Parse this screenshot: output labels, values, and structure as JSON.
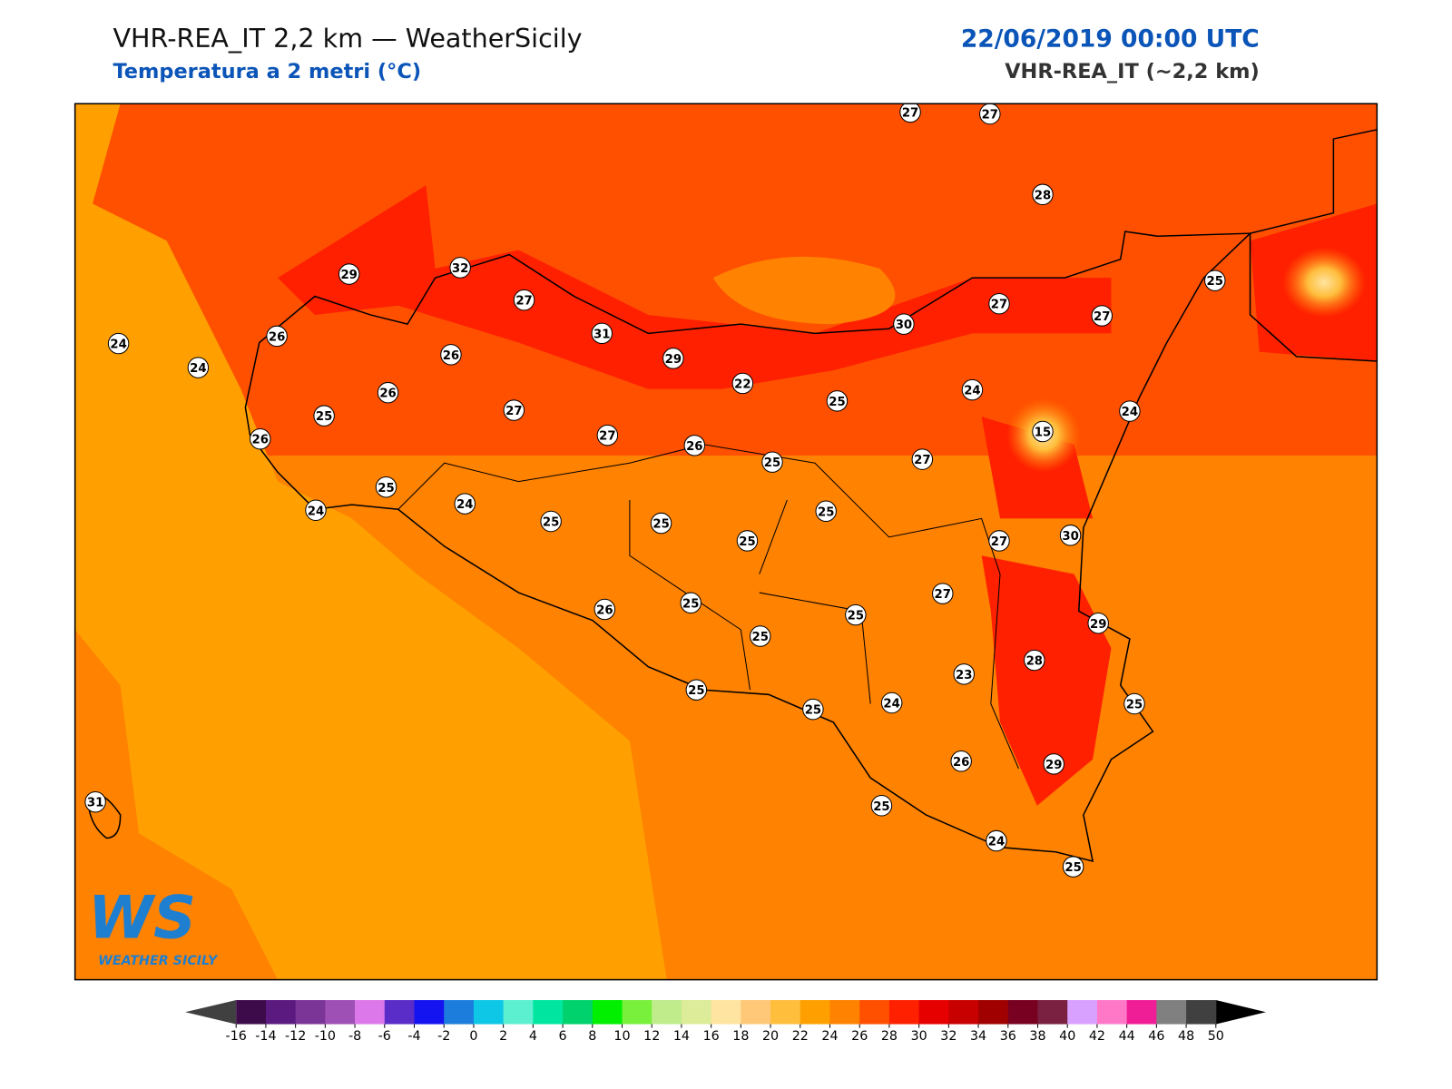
{
  "header": {
    "title": "VHR-REA_IT 2,2 km — WeatherSicily",
    "subtitle": "Temperatura a 2 metri (°C)",
    "date": "22/06/2019 00:00 UTC",
    "model": "VHR-REA_IT (~2,2 km)"
  },
  "logo": {
    "mark": "WS",
    "name": "WEATHER SICILY"
  },
  "map": {
    "stations": [
      27,
      27,
      28,
      29,
      32,
      27,
      31,
      29,
      26,
      24,
      24,
      26,
      26,
      25,
      26,
      27,
      27,
      22,
      26,
      25,
      25,
      30,
      27,
      27,
      25,
      24,
      15,
      24,
      27,
      25,
      24,
      24,
      25,
      25,
      25,
      25,
      27,
      30,
      27,
      29,
      26,
      25,
      25,
      25,
      28,
      23,
      25,
      25,
      24,
      25,
      26,
      29,
      25,
      24,
      25,
      31
    ]
  },
  "colorbar": {
    "ticks": [
      -16,
      -14,
      -12,
      -10,
      -8,
      -6,
      -4,
      -2,
      0,
      2,
      4,
      6,
      8,
      10,
      12,
      14,
      16,
      18,
      20,
      22,
      24,
      26,
      28,
      30,
      32,
      34,
      36,
      38,
      40,
      42,
      44,
      46,
      48,
      50
    ],
    "colors": [
      "#3d0b4a",
      "#5a1a7f",
      "#7b3596",
      "#9e50b5",
      "#dd78ea",
      "#5a2cc8",
      "#1414f0",
      "#1c7ddc",
      "#0ec6e6",
      "#5cf0d0",
      "#00e6a0",
      "#00d26e",
      "#00f000",
      "#78f03c",
      "#c0ec8c",
      "#dcec98",
      "#ffe3a0",
      "#ffc878",
      "#ffbe3c",
      "#ffa000",
      "#ff8200",
      "#ff5000",
      "#ff2000",
      "#e60000",
      "#c80000",
      "#a00000",
      "#780020",
      "#7a2040",
      "#d8a0ff",
      "#ff78c8",
      "#f01e96",
      "#808080",
      "#404040"
    ],
    "under": "#404040",
    "over": "#000000"
  }
}
